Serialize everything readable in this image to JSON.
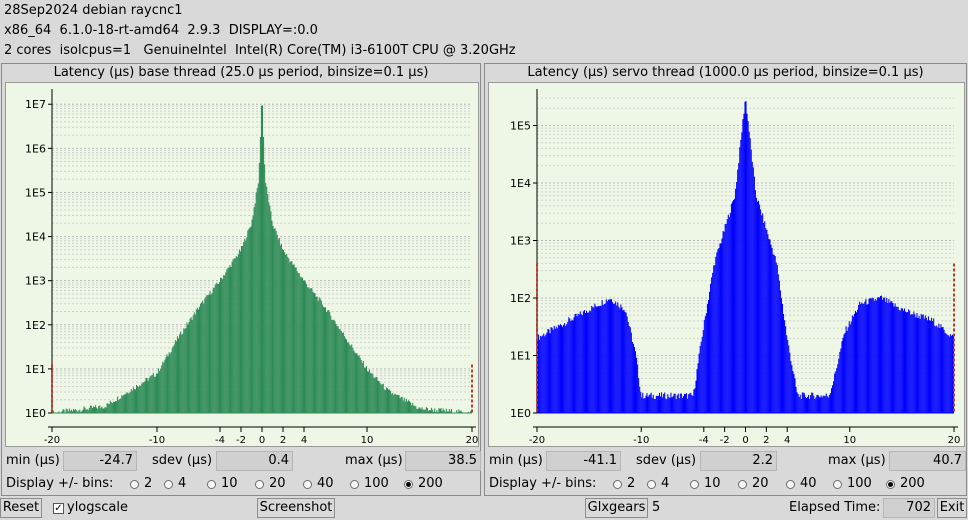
{
  "header": {
    "line1": "28Sep2024 debian raycnc1",
    "line2": "x86_64  6.1.0-18-rt-amd64  2.9.3  DISPLAY=:0.0",
    "line3": "2 cores  isolcpus=1   GenuineIntel  Intel(R) Core(TM) i3-6100T CPU @ 3.20GHz"
  },
  "base": {
    "title": "Latency (µs) base thread (25.0 µs period, binsize=0.1 µs)",
    "min_label": "min (µs)",
    "min": "-24.7",
    "sdev_label": "sdev (µs)",
    "sdev": "0.4",
    "max_label": "max (µs)",
    "max": "38.5",
    "bins_label": "Display +/- bins:",
    "bins": [
      "2",
      "4",
      "10",
      "20",
      "40",
      "100",
      "200"
    ],
    "selected_bins": "200"
  },
  "servo": {
    "title": "Latency (µs) servo thread (1000.0 µs period, binsize=0.1 µs)",
    "min_label": "min (µs)",
    "min": "-41.1",
    "sdev_label": "sdev (µs)",
    "sdev": "2.2",
    "max_label": "max (µs)",
    "max": "40.7",
    "bins_label": "Display +/- bins:",
    "bins": [
      "2",
      "4",
      "10",
      "20",
      "40",
      "100",
      "200"
    ],
    "selected_bins": "200"
  },
  "footer": {
    "reset": "Reset",
    "ylogscale": "ylogscale",
    "ylogscale_checked": true,
    "screenshot": "Screenshot",
    "glxgears": "Glxgears",
    "glxgears_count": "5",
    "elapsed_label": "Elapsed Time:",
    "elapsed": "702",
    "exit": "Exit"
  },
  "chart_data": [
    {
      "type": "bar",
      "title": "Latency (µs) base thread (25.0 µs period, binsize=0.1 µs)",
      "xlabel": "",
      "ylabel": "",
      "x_ticks": [
        -20,
        -10,
        -4,
        -2,
        0,
        2,
        4,
        10,
        20
      ],
      "y_ticks": [
        "1E0",
        "1E1",
        "1E2",
        "1E3",
        "1E4",
        "1E5",
        "1E6",
        "1E7"
      ],
      "xlim": [
        -20,
        20
      ],
      "ylog": true,
      "ylim_exp": [
        0,
        7.3
      ],
      "color": "#2e8b57",
      "profile": [
        {
          "x": -20.0,
          "log10": 0.0
        },
        {
          "x": -15.0,
          "log10": 0.15
        },
        {
          "x": -10.0,
          "log10": 0.9
        },
        {
          "x": -8.0,
          "log10": 1.7
        },
        {
          "x": -6.0,
          "log10": 2.4
        },
        {
          "x": -4.0,
          "log10": 3.0
        },
        {
          "x": -2.0,
          "log10": 3.7
        },
        {
          "x": -1.0,
          "log10": 4.3
        },
        {
          "x": -0.3,
          "log10": 5.3
        },
        {
          "x": 0.0,
          "log10": 7.3
        },
        {
          "x": 0.3,
          "log10": 5.3
        },
        {
          "x": 1.0,
          "log10": 4.3
        },
        {
          "x": 2.0,
          "log10": 3.7
        },
        {
          "x": 4.0,
          "log10": 3.0
        },
        {
          "x": 6.0,
          "log10": 2.4
        },
        {
          "x": 8.0,
          "log10": 1.7
        },
        {
          "x": 10.0,
          "log10": 1.0
        },
        {
          "x": 12.0,
          "log10": 0.5
        },
        {
          "x": 15.0,
          "log10": 0.1
        },
        {
          "x": 20.0,
          "log10": 0.0
        }
      ],
      "edge_markers": [
        -20,
        20
      ],
      "edge_marker_log10": 1.1
    },
    {
      "type": "bar",
      "title": "Latency (µs) servo thread (1000.0 µs period, binsize=0.1 µs)",
      "xlabel": "",
      "ylabel": "",
      "x_ticks": [
        -20,
        -10,
        -4,
        -2,
        0,
        2,
        4,
        10,
        20
      ],
      "y_ticks": [
        "1E0",
        "1E1",
        "1E2",
        "1E3",
        "1E4",
        "1E5"
      ],
      "xlim": [
        -20,
        20
      ],
      "ylog": true,
      "ylim_exp": [
        0,
        5.6
      ],
      "color": "#0000ff",
      "profile": [
        {
          "x": -20.0,
          "log10": 1.3
        },
        {
          "x": -18.0,
          "log10": 1.5
        },
        {
          "x": -15.0,
          "log10": 1.8
        },
        {
          "x": -13.0,
          "log10": 2.0
        },
        {
          "x": -11.5,
          "log10": 1.8
        },
        {
          "x": -10.5,
          "log10": 1.0
        },
        {
          "x": -10.0,
          "log10": 0.3
        },
        {
          "x": -8.5,
          "log10": 0.3
        },
        {
          "x": -5.0,
          "log10": 0.3
        },
        {
          "x": -4.2,
          "log10": 1.3
        },
        {
          "x": -3.0,
          "log10": 2.6
        },
        {
          "x": -2.0,
          "log10": 3.2
        },
        {
          "x": -1.0,
          "log10": 3.8
        },
        {
          "x": 0.0,
          "log10": 5.5
        },
        {
          "x": 1.0,
          "log10": 3.8
        },
        {
          "x": 2.0,
          "log10": 3.2
        },
        {
          "x": 3.0,
          "log10": 2.6
        },
        {
          "x": 4.0,
          "log10": 1.3
        },
        {
          "x": 5.0,
          "log10": 0.3
        },
        {
          "x": 8.0,
          "log10": 0.3
        },
        {
          "x": 8.5,
          "log10": 0.6
        },
        {
          "x": 9.5,
          "log10": 1.4
        },
        {
          "x": 11.0,
          "log10": 1.9
        },
        {
          "x": 13.0,
          "log10": 2.0
        },
        {
          "x": 15.0,
          "log10": 1.8
        },
        {
          "x": 18.0,
          "log10": 1.6
        },
        {
          "x": 20.0,
          "log10": 1.3
        }
      ],
      "edge_markers": [
        -20,
        20
      ],
      "edge_marker_log10": 2.6
    }
  ]
}
